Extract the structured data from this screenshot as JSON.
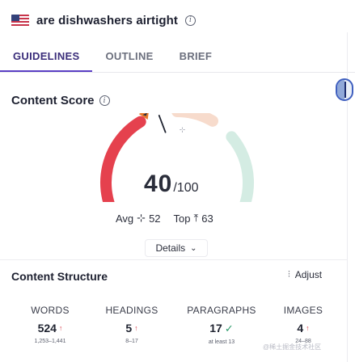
{
  "header": {
    "keyword": "are dishwashers airtight",
    "flag_icon": "us-flag-icon",
    "info_icon": "i"
  },
  "tabs": [
    {
      "label": "GUIDELINES",
      "active": true
    },
    {
      "label": "OUTLINE",
      "active": false
    },
    {
      "label": "BRIEF",
      "active": false
    }
  ],
  "content_score": {
    "title": "Content Score",
    "info_icon": "i",
    "score": "40",
    "max": "/100",
    "score_fraction": 0.4,
    "avg_label": "Avg",
    "avg_value": "52",
    "avg_glyph": "⊹",
    "top_label": "Top",
    "top_value": "63",
    "top_glyph": "⤒",
    "details_label": "Details",
    "colors": {
      "red": "#e5414e",
      "orange": "#f7dbcc",
      "green": "#d4ece3",
      "needle": "#1f2330"
    }
  },
  "structure": {
    "title": "Content Structure",
    "adjust_label": "Adjust",
    "adjust_icon": "⫶",
    "stats": [
      {
        "head": "WORDS",
        "value": "524",
        "indicator": "↑",
        "indicator_type": "up",
        "range": "1,253–1,441"
      },
      {
        "head": "HEADINGS",
        "value": "5",
        "indicator": "↑",
        "indicator_type": "up",
        "range": "8–17"
      },
      {
        "head": "PARAGRAPHS",
        "value": "17",
        "indicator": "✓",
        "indicator_type": "check",
        "range": "at least 13"
      },
      {
        "head": "IMAGES",
        "value": "4",
        "indicator": "↑",
        "indicator_type": "up",
        "range": "24–88"
      }
    ]
  },
  "watermark": "@稀土掘金技术社区"
}
